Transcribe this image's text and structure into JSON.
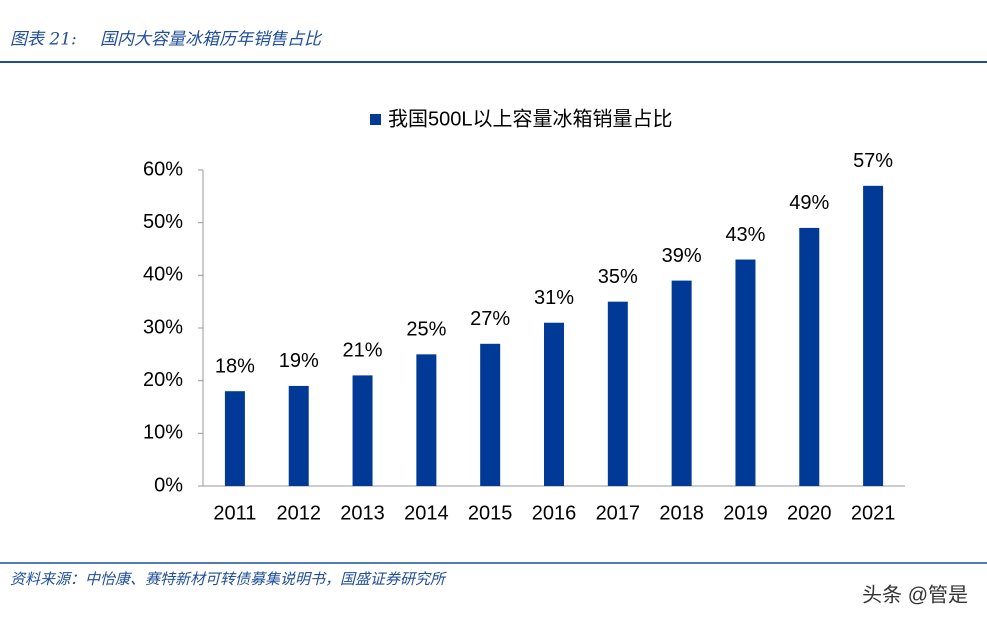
{
  "header": {
    "label": "图表 21:",
    "title": "国内大容量冰箱历年销售占比"
  },
  "chart_data": {
    "type": "bar",
    "categories": [
      "2011",
      "2012",
      "2013",
      "2014",
      "2015",
      "2016",
      "2017",
      "2018",
      "2019",
      "2020",
      "2021"
    ],
    "series": [
      {
        "name": "我国500L以上容量冰箱销量占比",
        "color": "#003a96",
        "values": [
          18,
          19,
          21,
          25,
          27,
          31,
          35,
          39,
          43,
          49,
          57
        ],
        "value_labels": [
          "18%",
          "19%",
          "21%",
          "25%",
          "27%",
          "31%",
          "35%",
          "39%",
          "43%",
          "49%",
          "57%"
        ]
      }
    ],
    "ylim": [
      0,
      60
    ],
    "yticks": [
      {
        "value": 0,
        "label": "0%"
      },
      {
        "value": 10,
        "label": "10%"
      },
      {
        "value": 20,
        "label": "20%"
      },
      {
        "value": 30,
        "label": "30%"
      },
      {
        "value": 40,
        "label": "40%"
      },
      {
        "value": 50,
        "label": "50%"
      },
      {
        "value": 60,
        "label": "60%"
      }
    ],
    "legend": "top"
  },
  "source": "资料来源：中怡康、赛特新材可转债募集说明书，国盛证券研究所",
  "watermark": "头条 @管是"
}
